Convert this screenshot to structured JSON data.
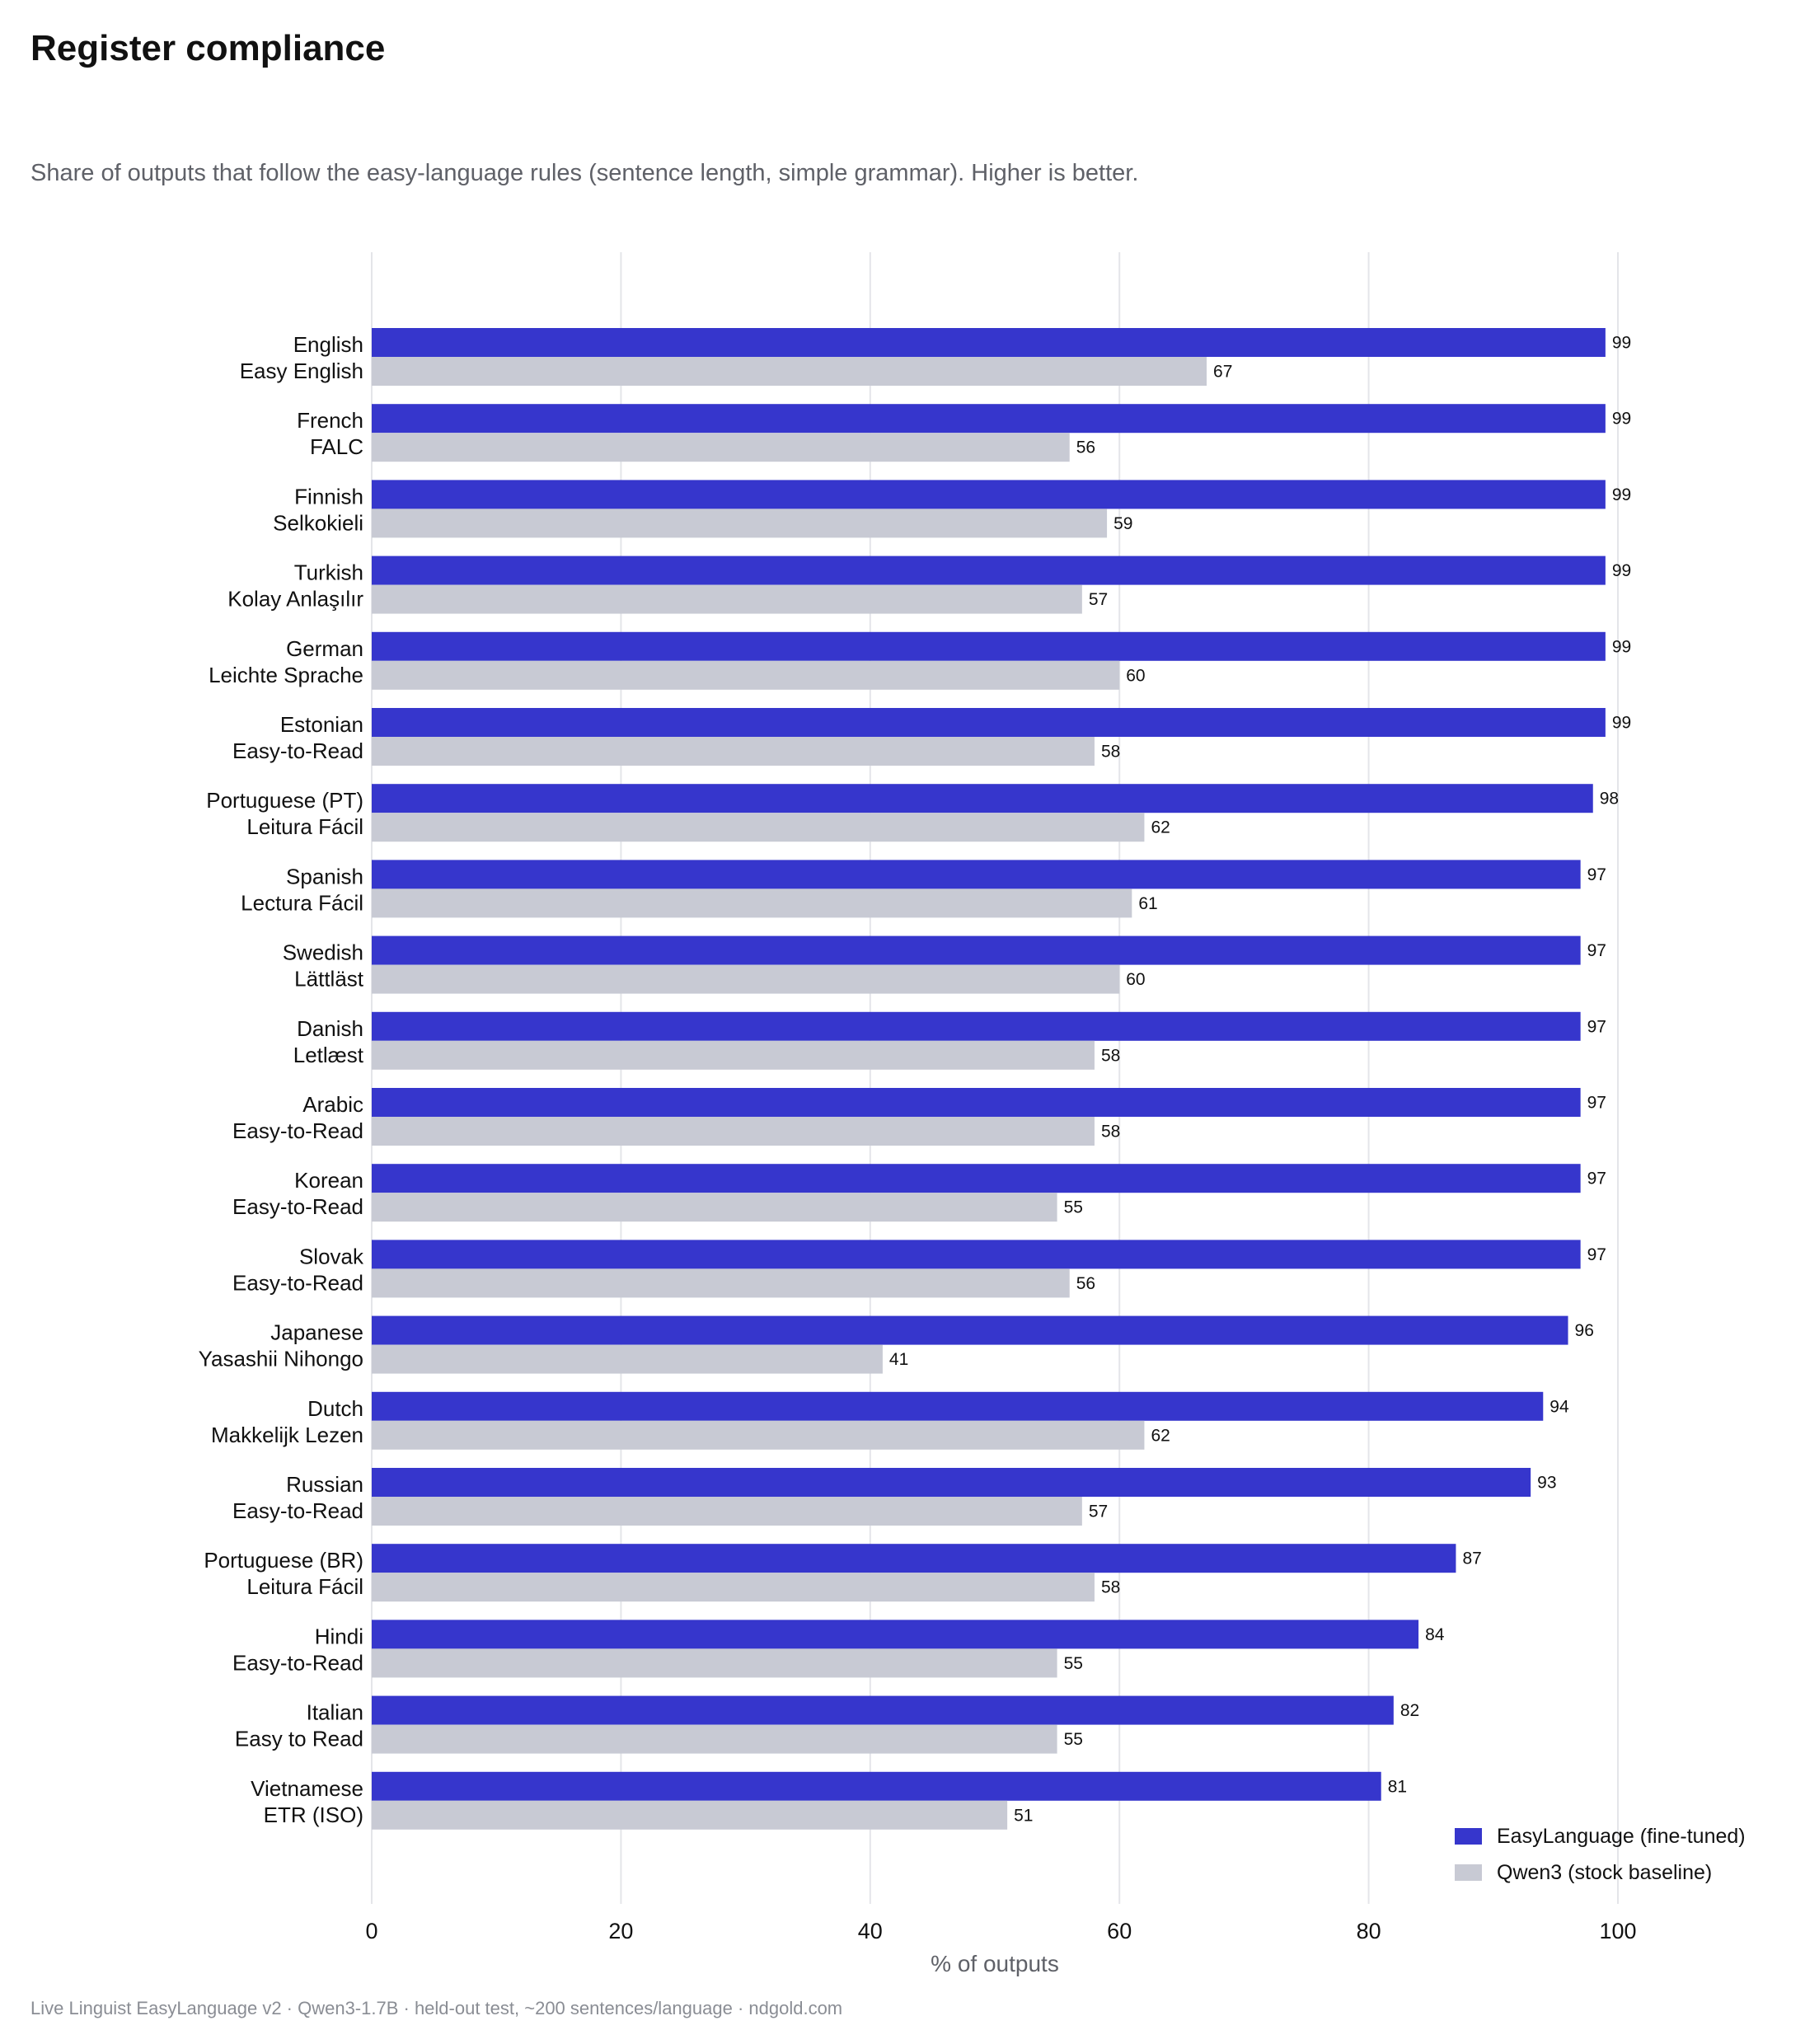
{
  "header": {
    "title": "Register compliance",
    "subtitle": "Share of outputs that follow the easy-language rules (sentence length, simple grammar). Higher is better."
  },
  "footer": {
    "text": "Live Linguist EasyLanguage v2 · Qwen3-1.7B · held-out test, ~200 sentences/language · ndgold.com"
  },
  "colors": {
    "easylanguage": "#3636cc",
    "baseline": "#c8cad4",
    "grid": "#e4e5e9"
  },
  "chart_data": {
    "type": "bar",
    "orientation": "horizontal",
    "title": "Register compliance",
    "subtitle": "Share of outputs that follow the easy-language rules (sentence length, simple grammar). Higher is better.",
    "xlabel": "% of outputs",
    "ylabel": "",
    "xlim": [
      0,
      100
    ],
    "xticks": [
      "0",
      "20",
      "40",
      "60",
      "80",
      "100"
    ],
    "grid": true,
    "legend_position": "bottom-right",
    "categories": [
      {
        "language": "English",
        "register": "Easy English"
      },
      {
        "language": "French",
        "register": "FALC"
      },
      {
        "language": "Finnish",
        "register": "Selkokieli"
      },
      {
        "language": "Turkish",
        "register": "Kolay Anlaşılır"
      },
      {
        "language": "German",
        "register": "Leichte Sprache"
      },
      {
        "language": "Estonian",
        "register": "Easy-to-Read"
      },
      {
        "language": "Portuguese (PT)",
        "register": "Leitura Fácil"
      },
      {
        "language": "Spanish",
        "register": "Lectura Fácil"
      },
      {
        "language": "Swedish",
        "register": "Lättläst"
      },
      {
        "language": "Danish",
        "register": "Letlæst"
      },
      {
        "language": "Arabic",
        "register": "Easy-to-Read"
      },
      {
        "language": "Korean",
        "register": "Easy-to-Read"
      },
      {
        "language": "Slovak",
        "register": "Easy-to-Read"
      },
      {
        "language": "Japanese",
        "register": "Yasashii Nihongo"
      },
      {
        "language": "Dutch",
        "register": "Makkelijk Lezen"
      },
      {
        "language": "Russian",
        "register": "Easy-to-Read"
      },
      {
        "language": "Portuguese (BR)",
        "register": "Leitura Fácil"
      },
      {
        "language": "Hindi",
        "register": "Easy-to-Read"
      },
      {
        "language": "Italian",
        "register": "Easy to Read"
      },
      {
        "language": "Vietnamese",
        "register": "ETR (ISO)"
      }
    ],
    "series": [
      {
        "name": "EasyLanguage (fine-tuned)",
        "color": "#3636cc",
        "values": [
          99,
          99,
          99,
          99,
          99,
          99,
          98,
          97,
          97,
          97,
          97,
          97,
          97,
          96,
          94,
          93,
          87,
          84,
          82,
          81
        ]
      },
      {
        "name": "Qwen3 (stock baseline)",
        "color": "#c8cad4",
        "values": [
          67,
          56,
          59,
          57,
          60,
          58,
          62,
          61,
          60,
          58,
          58,
          55,
          56,
          41,
          62,
          57,
          58,
          55,
          55,
          51
        ]
      }
    ]
  }
}
